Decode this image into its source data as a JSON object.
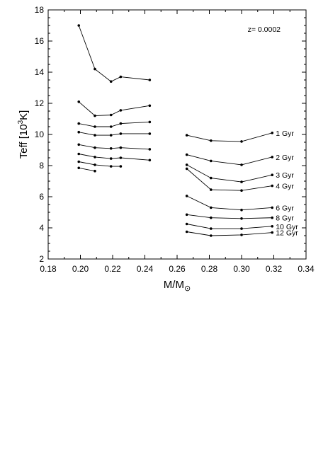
{
  "chart_data": {
    "type": "line",
    "annotation": "z= 0.0002",
    "xlabel": "M/M",
    "xlabel_sub": "⊙",
    "ylabel": "Teff [10",
    "ylabel_sup": "3",
    "ylabel_end": "K]",
    "xlim": [
      0.18,
      0.34
    ],
    "ylim": [
      2,
      18
    ],
    "x_ticks": [
      0.18,
      0.2,
      0.22,
      0.24,
      0.26,
      0.28,
      0.3,
      0.32,
      0.34
    ],
    "x_tick_labels": [
      "0.18",
      "0.20",
      "0.22",
      "0.24",
      "0.26",
      "0.28",
      "0.30",
      "0.32",
      "0.34"
    ],
    "y_ticks": [
      2,
      4,
      6,
      8,
      10,
      12,
      14,
      16,
      18
    ],
    "y_tick_labels": [
      "2",
      "4",
      "6",
      "8",
      "10",
      "12",
      "14",
      "16",
      "18"
    ],
    "grid": false,
    "legend": "labels at right end of each curve",
    "series": [
      {
        "name": "1 Gyr",
        "segments": [
          {
            "x": [
              0.199,
              0.209,
              0.219,
              0.225,
              0.243
            ],
            "y": [
              17.0,
              14.2,
              13.4,
              13.7,
              13.5
            ]
          },
          {
            "x": [
              0.266,
              0.281,
              0.3,
              0.319
            ],
            "y": [
              9.95,
              9.6,
              9.55,
              10.1
            ]
          }
        ]
      },
      {
        "name": "2 Gyr",
        "segments": [
          {
            "x": [
              0.199,
              0.209,
              0.219,
              0.225,
              0.243
            ],
            "y": [
              12.1,
              11.2,
              11.25,
              11.55,
              11.85
            ]
          },
          {
            "x": [
              0.266,
              0.281,
              0.3,
              0.319
            ],
            "y": [
              8.7,
              8.3,
              8.05,
              8.55
            ]
          }
        ]
      },
      {
        "name": "3 Gyr",
        "segments": [
          {
            "x": [
              0.199,
              0.209,
              0.219,
              0.225,
              0.243
            ],
            "y": [
              10.7,
              10.5,
              10.5,
              10.7,
              10.8
            ]
          },
          {
            "x": [
              0.266,
              0.281,
              0.3,
              0.319
            ],
            "y": [
              8.05,
              7.2,
              6.95,
              7.4
            ]
          }
        ]
      },
      {
        "name": "4 Gyr",
        "segments": [
          {
            "x": [
              0.199,
              0.209,
              0.219,
              0.225,
              0.243
            ],
            "y": [
              10.15,
              9.95,
              9.95,
              10.05,
              10.05
            ]
          },
          {
            "x": [
              0.266,
              0.281,
              0.3,
              0.319
            ],
            "y": [
              7.8,
              6.45,
              6.4,
              6.7
            ]
          }
        ]
      },
      {
        "name": "6 Gyr",
        "segments": [
          {
            "x": [
              0.199,
              0.209,
              0.219,
              0.225,
              0.243
            ],
            "y": [
              9.35,
              9.15,
              9.1,
              9.15,
              9.05
            ]
          },
          {
            "x": [
              0.266,
              0.281,
              0.3,
              0.319
            ],
            "y": [
              6.05,
              5.3,
              5.15,
              5.3
            ]
          }
        ]
      },
      {
        "name": "8 Gyr",
        "segments": [
          {
            "x": [
              0.199,
              0.209,
              0.219,
              0.225,
              0.243
            ],
            "y": [
              8.75,
              8.55,
              8.45,
              8.5,
              8.35
            ]
          },
          {
            "x": [
              0.266,
              0.281,
              0.3,
              0.319
            ],
            "y": [
              4.85,
              4.65,
              4.6,
              4.65
            ]
          }
        ]
      },
      {
        "name": "10 Gyr",
        "segments": [
          {
            "x": [
              0.199,
              0.209,
              0.219,
              0.225
            ],
            "y": [
              8.25,
              8.05,
              7.95,
              7.95
            ]
          },
          {
            "x": [
              0.266,
              0.281,
              0.3,
              0.319
            ],
            "y": [
              4.25,
              3.95,
              3.95,
              4.1
            ]
          }
        ]
      },
      {
        "name": "12 Gyr",
        "segments": [
          {
            "x": [
              0.199,
              0.209
            ],
            "y": [
              7.85,
              7.65
            ]
          },
          {
            "x": [
              0.266,
              0.281,
              0.3,
              0.319
            ],
            "y": [
              3.75,
              3.5,
              3.55,
              3.7
            ]
          }
        ]
      }
    ]
  }
}
